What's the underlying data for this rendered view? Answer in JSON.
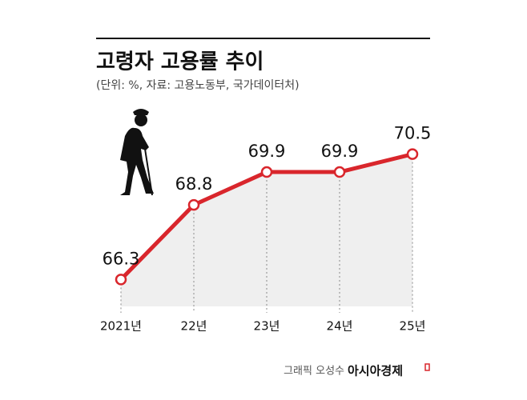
{
  "chart_data": {
    "type": "line",
    "title": "고령자 고용률 추이",
    "subtitle": "(단위: %, 자료: 고용노동부, 국가데이터처)",
    "categories": [
      "2021년",
      "22년",
      "23년",
      "24년",
      "25년"
    ],
    "values": [
      66.3,
      68.8,
      69.9,
      69.9,
      70.5
    ],
    "color": "#d9262c",
    "area_color": "#efefef",
    "ylim": [
      65.4,
      71
    ],
    "credit": "그래픽 오성수",
    "source_brand": "아시아경제"
  }
}
